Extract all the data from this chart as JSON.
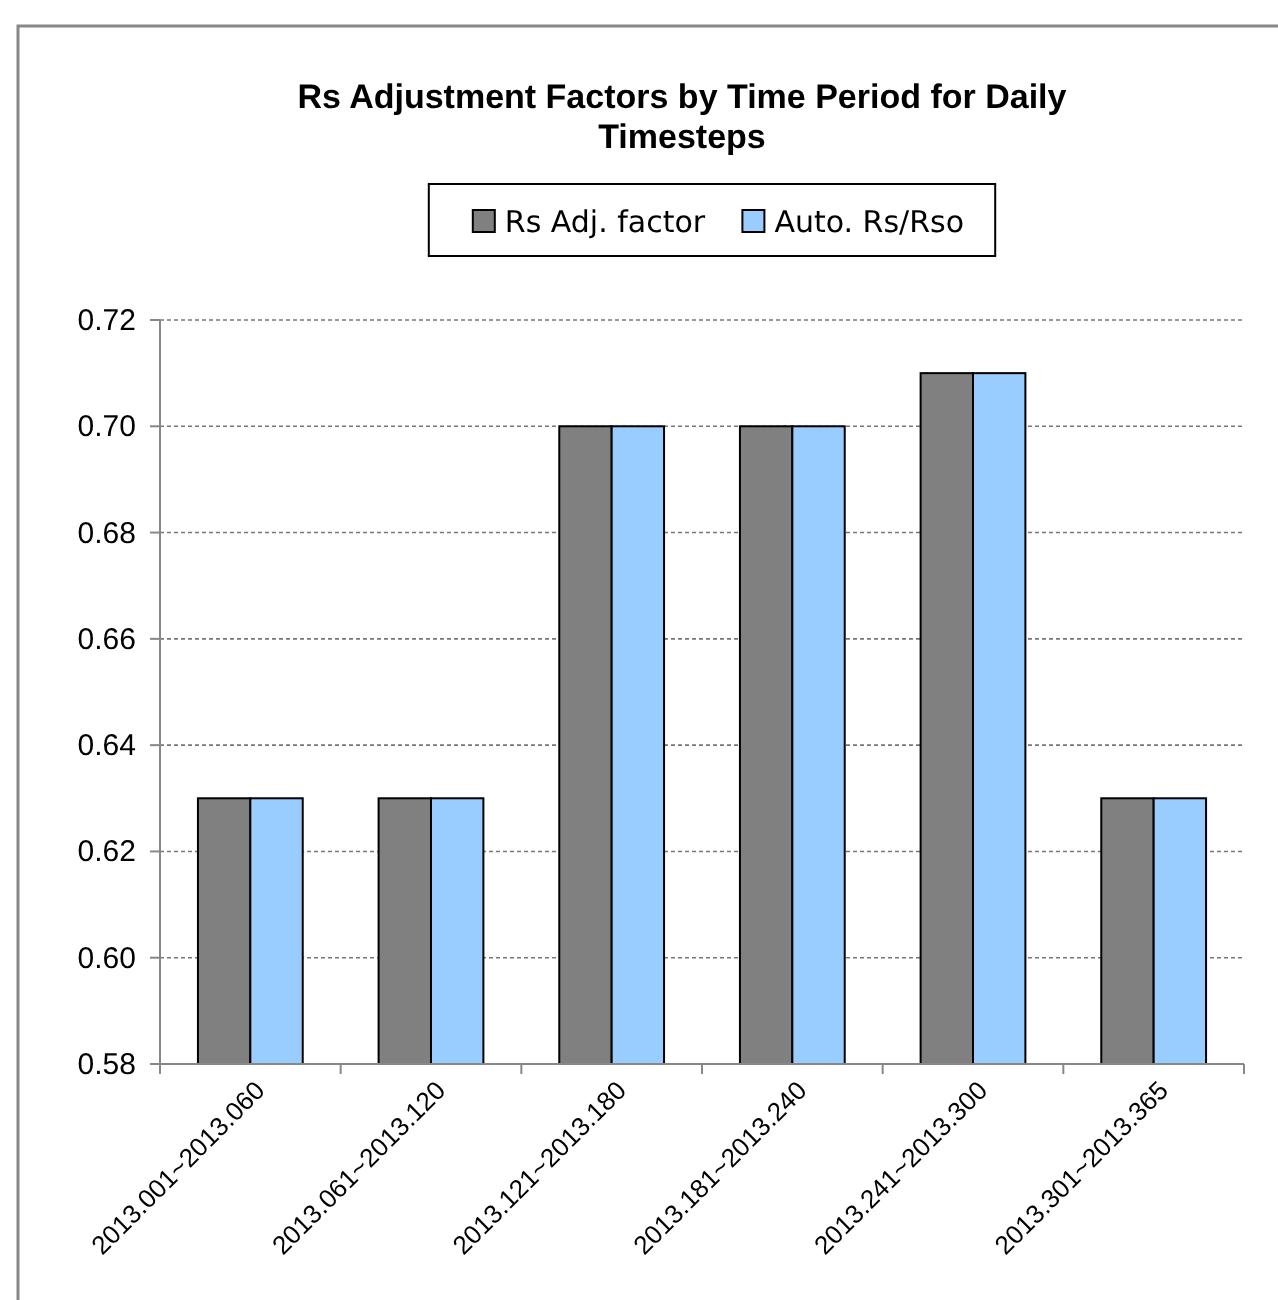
{
  "chart_data": {
    "type": "bar",
    "title": "Rs Adjustment Factors by Time Period for Daily Timesteps",
    "categories": [
      "2013.001~2013.060",
      "2013.061~2013.120",
      "2013.121~2013.180",
      "2013.181~2013.240",
      "2013.241~2013.300",
      "2013.301~2013.365"
    ],
    "series": [
      {
        "name": "Rs Adj. factor",
        "color": "#808080",
        "values": [
          0.63,
          0.63,
          0.7,
          0.7,
          0.71,
          0.63
        ]
      },
      {
        "name": "Auto. Rs/Rso",
        "color": "#99ccff",
        "values": [
          0.63,
          0.63,
          0.7,
          0.7,
          0.71,
          0.63
        ]
      }
    ],
    "ylim": [
      0.58,
      0.72
    ],
    "yticks": [
      0.58,
      {
        "value": 0.6,
        "label": "0.60"
      },
      0.62,
      0.64,
      0.66,
      0.68,
      {
        "value": 0.7,
        "label": "0.70"
      },
      0.72
    ],
    "grid": "y",
    "legend": "top"
  }
}
